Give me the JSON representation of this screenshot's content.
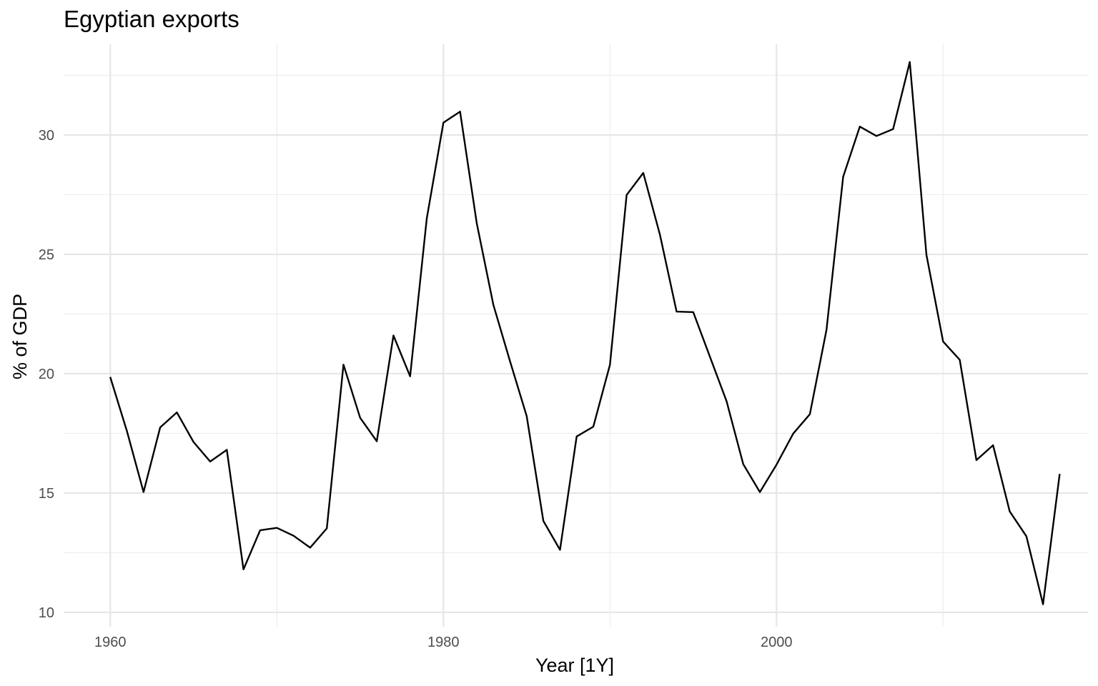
{
  "chart_data": {
    "type": "line",
    "title": "Egyptian exports",
    "xlabel": "Year [1Y]",
    "ylabel": "% of GDP",
    "xlim": [
      1957.2,
      2018.7
    ],
    "ylim": [
      9.4,
      33.8
    ],
    "x_ticks": [
      1960,
      1980,
      2000
    ],
    "x_minor_ticks": [
      1970,
      1990,
      2010
    ],
    "y_ticks": [
      10,
      15,
      20,
      25,
      30
    ],
    "y_minor_ticks": [
      12.5,
      17.5,
      22.5,
      27.5,
      32.5
    ],
    "grid": true,
    "legend": "none",
    "line_color": "#000000",
    "x": [
      1960,
      1961,
      1962,
      1963,
      1964,
      1965,
      1966,
      1967,
      1968,
      1969,
      1970,
      1971,
      1972,
      1973,
      1974,
      1975,
      1976,
      1977,
      1978,
      1979,
      1980,
      1981,
      1982,
      1983,
      1984,
      1985,
      1986,
      1987,
      1988,
      1989,
      1990,
      1991,
      1992,
      1993,
      1994,
      1995,
      1996,
      1997,
      1998,
      1999,
      2000,
      2001,
      2002,
      2003,
      2004,
      2005,
      2006,
      2007,
      2008,
      2009,
      2010,
      2011,
      2012,
      2013,
      2014,
      2015,
      2016,
      2017
    ],
    "y": [
      19.86,
      17.6,
      15.04,
      17.75,
      18.38,
      17.14,
      16.32,
      16.81,
      11.8,
      13.44,
      13.54,
      13.21,
      12.71,
      13.52,
      20.38,
      18.15,
      17.17,
      21.6,
      19.89,
      26.5,
      30.52,
      30.98,
      26.31,
      22.88,
      20.52,
      18.22,
      13.83,
      12.62,
      17.37,
      17.78,
      20.38,
      27.49,
      28.41,
      25.82,
      22.6,
      22.58,
      20.71,
      18.85,
      16.21,
      15.04,
      16.19,
      17.49,
      18.3,
      21.84,
      28.25,
      30.35,
      29.96,
      30.25,
      33.06,
      24.98,
      21.35,
      20.58,
      16.38,
      17.0,
      14.23,
      13.19,
      10.34,
      15.8
    ]
  }
}
